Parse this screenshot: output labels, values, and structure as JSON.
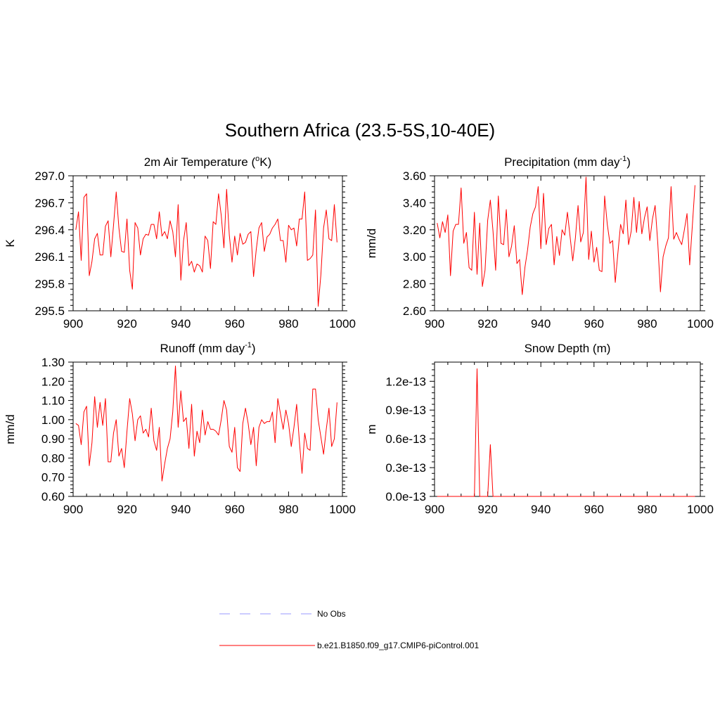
{
  "title": "Southern Africa (23.5-5S,10-40E)",
  "colors": {
    "model": "#ff0000",
    "obs": "#9999ff",
    "axis": "#000000"
  },
  "chart_data": [
    {
      "type": "line",
      "title": "2m Air Temperature (",
      "title_sup": "o",
      "title_suffix": "K)",
      "ylabel": "K",
      "xlim": [
        900,
        1000
      ],
      "ylim": [
        295.5,
        297.0
      ],
      "xticks": [
        900,
        920,
        940,
        960,
        980,
        1000
      ],
      "xtick_labels": [
        "900",
        "920",
        "940",
        "960",
        "980",
        "1000"
      ],
      "yticks": [
        295.5,
        295.8,
        296.1,
        296.4,
        296.7,
        297.0
      ],
      "ytick_labels": [
        "295.5",
        "295.8",
        "296.1",
        "296.4",
        "296.7",
        "297.0"
      ],
      "x_start": 901,
      "series": [
        {
          "name": "b.e21.B1850.f09_g17.CMIP6-piControl.001",
          "values": [
            296.4,
            296.6,
            296.06,
            296.76,
            296.8,
            295.89,
            296.05,
            296.3,
            296.36,
            296.12,
            296.12,
            296.44,
            296.5,
            296.1,
            296.45,
            296.82,
            296.42,
            296.16,
            296.15,
            296.52,
            295.95,
            295.74,
            296.48,
            296.42,
            296.12,
            296.3,
            296.35,
            296.34,
            296.46,
            296.46,
            296.3,
            296.6,
            296.33,
            296.38,
            296.3,
            296.5,
            296.38,
            296.1,
            296.68,
            295.84,
            296.28,
            296.48,
            296.0,
            296.05,
            295.93,
            296.02,
            296.0,
            295.93,
            296.33,
            296.28,
            295.97,
            296.49,
            296.46,
            296.8,
            296.56,
            296.2,
            296.85,
            296.34,
            296.04,
            296.33,
            296.12,
            296.36,
            296.24,
            296.26,
            296.35,
            296.38,
            295.88,
            296.18,
            296.42,
            296.48,
            296.16,
            296.32,
            296.35,
            296.42,
            296.46,
            296.52,
            296.28,
            296.28,
            296.04,
            296.45,
            296.4,
            296.42,
            296.22,
            296.52,
            296.52,
            296.82,
            296.06,
            296.08,
            296.12,
            296.62,
            295.55,
            295.9,
            296.42,
            296.62,
            296.3,
            296.28,
            296.68,
            296.26
          ]
        }
      ]
    },
    {
      "type": "line",
      "title": "Precipitation (mm day",
      "title_sup": "-1",
      "title_suffix": ")",
      "ylabel": "mm/d",
      "xlim": [
        900,
        1000
      ],
      "ylim": [
        2.6,
        3.6
      ],
      "xticks": [
        900,
        920,
        940,
        960,
        980,
        1000
      ],
      "xtick_labels": [
        "900",
        "920",
        "940",
        "960",
        "980",
        "1000"
      ],
      "yticks": [
        2.6,
        2.8,
        3.0,
        3.2,
        3.4,
        3.6
      ],
      "ytick_labels": [
        "2.60",
        "2.80",
        "3.00",
        "3.20",
        "3.40",
        "3.60"
      ],
      "x_start": 901,
      "series": [
        {
          "name": "b.e21.B1850.f09_g17.CMIP6-piControl.001",
          "values": [
            3.25,
            3.14,
            3.26,
            3.18,
            3.31,
            2.86,
            3.19,
            3.24,
            3.24,
            3.51,
            3.1,
            3.18,
            2.92,
            2.9,
            3.33,
            2.87,
            3.25,
            2.78,
            2.9,
            3.27,
            3.42,
            3.19,
            2.9,
            3.45,
            3.1,
            3.09,
            3.35,
            3.0,
            3.08,
            3.23,
            2.95,
            2.98,
            2.72,
            2.92,
            3.05,
            3.22,
            3.32,
            3.37,
            3.52,
            3.06,
            3.47,
            3.09,
            3.21,
            3.24,
            2.94,
            3.15,
            3.01,
            3.2,
            3.16,
            3.33,
            3.15,
            2.97,
            3.14,
            3.38,
            3.11,
            3.18,
            3.59,
            2.98,
            3.19,
            2.96,
            3.07,
            2.9,
            2.89,
            3.45,
            3.24,
            3.1,
            3.12,
            2.81,
            3.03,
            3.24,
            3.17,
            3.42,
            3.09,
            3.19,
            3.44,
            3.18,
            3.41,
            3.17,
            3.29,
            3.37,
            3.12,
            3.28,
            3.38,
            3.1,
            2.74,
            3.0,
            3.08,
            3.14,
            3.52,
            3.13,
            3.18,
            3.13,
            3.09,
            3.2,
            3.32,
            2.94,
            3.23,
            3.53
          ]
        }
      ]
    },
    {
      "type": "line",
      "title": "Runoff (mm day",
      "title_sup": "-1",
      "title_suffix": ")",
      "ylabel": "mm/d",
      "xlim": [
        900,
        1000
      ],
      "ylim": [
        0.6,
        1.3
      ],
      "xticks": [
        900,
        920,
        940,
        960,
        980,
        1000
      ],
      "xtick_labels": [
        "900",
        "920",
        "940",
        "960",
        "980",
        "1000"
      ],
      "yticks": [
        0.6,
        0.7,
        0.8,
        0.9,
        1.0,
        1.1,
        1.2,
        1.3
      ],
      "ytick_labels": [
        "0.60",
        "0.70",
        "0.80",
        "0.90",
        "1.00",
        "1.10",
        "1.20",
        "1.30"
      ],
      "x_start": 901,
      "series": [
        {
          "name": "b.e21.B1850.f09_g17.CMIP6-piControl.001",
          "values": [
            0.98,
            0.97,
            0.87,
            1.04,
            1.07,
            0.76,
            0.88,
            1.12,
            0.96,
            1.09,
            0.97,
            1.11,
            0.78,
            0.78,
            0.93,
            1.0,
            0.81,
            0.85,
            0.75,
            0.94,
            1.11,
            1.03,
            0.89,
            1.0,
            1.02,
            0.93,
            0.95,
            0.91,
            1.06,
            0.89,
            0.84,
            0.96,
            0.68,
            0.77,
            0.85,
            0.9,
            1.04,
            1.28,
            0.96,
            1.15,
            0.99,
            1.01,
            0.85,
            1.08,
            0.81,
            0.94,
            0.88,
            1.05,
            0.92,
            0.99,
            0.95,
            0.95,
            0.94,
            0.92,
            1.0,
            1.1,
            1.05,
            0.86,
            0.83,
            0.96,
            0.75,
            0.73,
            0.98,
            1.06,
            0.98,
            0.87,
            0.96,
            0.76,
            0.96,
            1.0,
            0.98,
            0.99,
            0.99,
            1.04,
            0.88,
            1.11,
            1.03,
            0.95,
            1.05,
            0.98,
            0.86,
            0.96,
            1.08,
            0.89,
            0.72,
            0.93,
            0.85,
            0.84,
            1.16,
            1.16,
            1.0,
            0.91,
            0.82,
            0.95,
            1.06,
            0.86,
            0.9,
            1.09
          ]
        }
      ]
    },
    {
      "type": "line",
      "title": "Snow Depth (m)",
      "title_sup": "",
      "title_suffix": "",
      "ylabel": "m",
      "xlim": [
        900,
        1000
      ],
      "ylim": [
        0,
        1.4e-13
      ],
      "xticks": [
        900,
        920,
        940,
        960,
        980,
        1000
      ],
      "xtick_labels": [
        "900",
        "920",
        "940",
        "960",
        "980",
        "1000"
      ],
      "yticks": [
        0,
        3e-14,
        6e-14,
        9e-14,
        1.2e-13
      ],
      "ytick_labels": [
        "0.0e-13",
        "0.3e-13",
        "0.6e-13",
        "0.9e-13",
        "1.2e-13"
      ],
      "x_start": 901,
      "series": [
        {
          "name": "b.e21.B1850.f09_g17.CMIP6-piControl.001",
          "values": [
            0,
            0,
            0,
            0,
            0,
            0,
            0,
            0,
            0,
            0,
            0,
            0,
            0,
            0,
            0,
            1.33e-13,
            0,
            0,
            0,
            0,
            5.4e-14,
            0,
            0,
            0,
            0,
            0,
            0,
            0,
            0,
            0,
            0,
            0,
            0,
            0,
            0,
            0,
            0,
            0,
            0,
            0,
            0,
            0,
            0,
            0,
            0,
            0,
            0,
            0,
            0,
            0,
            0,
            0,
            0,
            0,
            0,
            0,
            0,
            0,
            0,
            0,
            0,
            0,
            0,
            0,
            0,
            0,
            0,
            0,
            0,
            0,
            0,
            0,
            0,
            0,
            0,
            0,
            0,
            0,
            0,
            0,
            0,
            0,
            0,
            0,
            0,
            0,
            0,
            0,
            0,
            0,
            0,
            0,
            0,
            0,
            0,
            0,
            0,
            0
          ]
        }
      ]
    }
  ],
  "legend": {
    "items": [
      {
        "label": "No Obs",
        "style": "dashed",
        "color": "#9999ff"
      },
      {
        "label": "b.e21.B1850.f09_g17.CMIP6-piControl.001",
        "style": "solid",
        "color": "#ff0000"
      }
    ]
  }
}
